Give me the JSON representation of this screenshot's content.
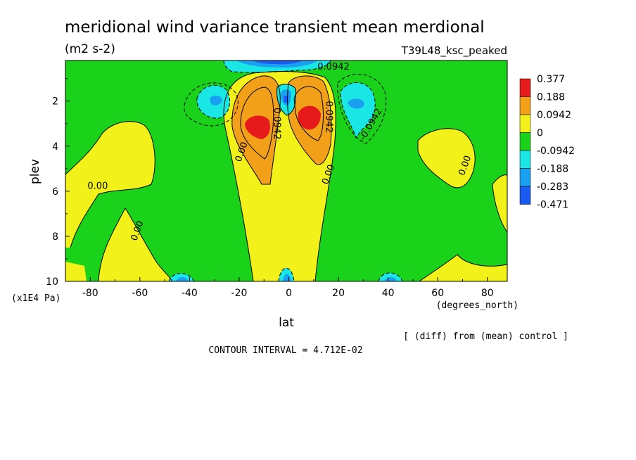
{
  "chart_data": {
    "type": "heatmap",
    "title": "meridional wind variance transient mean merdional",
    "units": "(m2 s-2)",
    "run_label": "T39L48_ksc_peaked",
    "xlabel": "lat",
    "xunits": "(degrees_north)",
    "ylabel": "plev",
    "yunits": "(x1E4 Pa)",
    "note": "[ (diff) from (mean) control ]",
    "contour_interval": "CONTOUR INTERVAL = 4.712E-02",
    "xlim": [
      -90,
      88
    ],
    "ylim": [
      10,
      0.2
    ],
    "x_ticks": [
      -80,
      -60,
      -40,
      -20,
      0,
      20,
      40,
      60,
      80
    ],
    "y_ticks": [
      2,
      4,
      6,
      8,
      10
    ],
    "colorbar": {
      "labels": [
        "0.377",
        "0.188",
        "0.0942",
        "0",
        "-0.0942",
        "-0.188",
        "-0.283",
        "-0.471"
      ],
      "colors": [
        "#e61a1a",
        "#f2a01a",
        "#f2f21a",
        "#1ad21a",
        "#1ae6e6",
        "#1aa0f0",
        "#1a5af0"
      ]
    },
    "contour_labels": [
      {
        "text": "0.0942",
        "lon": 18,
        "p": 0.6
      },
      {
        "text": "0.0942",
        "lon": -6,
        "p": 3.0
      },
      {
        "text": "0.0942",
        "lon": 15,
        "p": 2.7
      },
      {
        "text": "-0.0942",
        "lon": 34,
        "p": 3.1
      },
      {
        "text": "0.00",
        "lon": -18,
        "p": 4.3
      },
      {
        "text": "0.00",
        "lon": 17,
        "p": 5.3
      },
      {
        "text": "0.00",
        "lon": -77,
        "p": 5.9
      },
      {
        "text": "0.00",
        "lon": -60,
        "p": 7.8
      },
      {
        "text": "0.00",
        "lon": 72,
        "p": 4.9
      }
    ]
  }
}
